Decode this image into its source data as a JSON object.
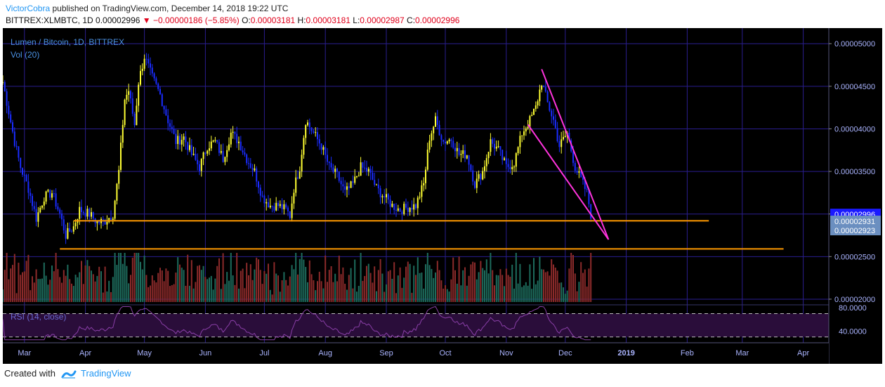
{
  "header": {
    "author": "VictorCobra",
    "published_text": "published on TradingView.com, December 14, 2018 19:22 UTC",
    "symbol": "BITTREX:XLMBTC, 1D",
    "last": "0.00002996",
    "change": "▼ −0.00000186 (−5.85%)",
    "open_label": "O:",
    "open": "0.00003181",
    "high_label": "H:",
    "high": "0.00003181",
    "low_label": "L:",
    "low": "0.00002987",
    "close_label": "C:",
    "close": "0.00002996"
  },
  "legend": {
    "title": "Lumen / Bitcoin, 1D, BITTREX",
    "volume": "Vol (20)",
    "rsi": "RSI (14, close)"
  },
  "footer": {
    "created_with": "Created with",
    "brand": "TradingView"
  },
  "colors": {
    "background": "#000000",
    "grid": "#2a1e8f",
    "candle_up": "#ffff33",
    "candle_down": "#1a2cff",
    "vol_up": "#1d6b5c",
    "vol_down": "#8b2a2a",
    "support_line": "#ff9900",
    "wedge": "#ff33dd",
    "rsi_line": "#8a3fa8",
    "rsi_band": "#2a0d3a",
    "axis_text": "#aab4ff",
    "price_tag": "#1a1aff",
    "price_tag_secondary": "#6b8fc0"
  },
  "chart_data": {
    "type": "candlestick",
    "symbol": "XLM/BTC",
    "interval": "1D",
    "y_axis": {
      "ticks": [
        "0.00005000",
        "0.00004500",
        "0.00004000",
        "0.00003500",
        "0.00003000",
        "0.00002500",
        "0.00002000"
      ],
      "range": [
        1.95e-05,
        5.15e-05
      ]
    },
    "x_axis": {
      "ticks": [
        "Mar",
        "Apr",
        "May",
        "Jun",
        "Jul",
        "Aug",
        "Sep",
        "Oct",
        "Nov",
        "Dec",
        "2019",
        "Feb",
        "Mar",
        "Apr"
      ],
      "range": [
        "2018-02-18",
        "2019-04-14"
      ]
    },
    "price_tags": [
      {
        "value": "0.00002996",
        "primary": true
      },
      {
        "value": "0.00002931",
        "primary": false
      },
      {
        "value": "0.00002923",
        "primary": false
      }
    ],
    "rsi": {
      "ticks": [
        "80.0000",
        "40.0000"
      ],
      "band": [
        30,
        70
      ],
      "range": [
        20,
        85
      ]
    },
    "price_path": [
      [
        "2018-02-18",
        4.55e-05
      ],
      [
        "2018-02-24",
        3.85e-05
      ],
      [
        "2018-02-27",
        3.55e-05
      ],
      [
        "2018-03-03",
        3.3e-05
      ],
      [
        "2018-03-07",
        2.95e-05
      ],
      [
        "2018-03-11",
        3.2e-05
      ],
      [
        "2018-03-15",
        3.25e-05
      ],
      [
        "2018-03-19",
        3e-05
      ],
      [
        "2018-03-22",
        2.75e-05
      ],
      [
        "2018-03-26",
        2.85e-05
      ],
      [
        "2018-03-29",
        3.05e-05
      ],
      [
        "2018-04-03",
        3e-05
      ],
      [
        "2018-04-07",
        2.9e-05
      ],
      [
        "2018-04-11",
        2.92e-05
      ],
      [
        "2018-04-15",
        3e-05
      ],
      [
        "2018-04-18",
        3.5e-05
      ],
      [
        "2018-04-21",
        4.35e-05
      ],
      [
        "2018-04-23",
        4.45e-05
      ],
      [
        "2018-04-26",
        4.05e-05
      ],
      [
        "2018-04-28",
        4.55e-05
      ],
      [
        "2018-05-01",
        4.85e-05
      ],
      [
        "2018-05-05",
        4.6e-05
      ],
      [
        "2018-05-09",
        4.4e-05
      ],
      [
        "2018-05-13",
        4.1e-05
      ],
      [
        "2018-05-17",
        3.85e-05
      ],
      [
        "2018-05-21",
        3.9e-05
      ],
      [
        "2018-05-25",
        3.7e-05
      ],
      [
        "2018-05-29",
        3.55e-05
      ],
      [
        "2018-06-02",
        3.8e-05
      ],
      [
        "2018-06-06",
        3.85e-05
      ],
      [
        "2018-06-10",
        3.65e-05
      ],
      [
        "2018-06-14",
        3.95e-05
      ],
      [
        "2018-06-18",
        3.85e-05
      ],
      [
        "2018-06-22",
        3.65e-05
      ],
      [
        "2018-06-26",
        3.5e-05
      ],
      [
        "2018-06-30",
        3.2e-05
      ],
      [
        "2018-07-04",
        3.1e-05
      ],
      [
        "2018-07-08",
        3.1e-05
      ],
      [
        "2018-07-12",
        3.05e-05
      ],
      [
        "2018-07-14",
        2.98e-05
      ],
      [
        "2018-07-16",
        3.3e-05
      ],
      [
        "2018-07-19",
        3.55e-05
      ],
      [
        "2018-07-22",
        4.1e-05
      ],
      [
        "2018-07-26",
        3.95e-05
      ],
      [
        "2018-07-30",
        3.8e-05
      ],
      [
        "2018-08-03",
        3.55e-05
      ],
      [
        "2018-08-07",
        3.45e-05
      ],
      [
        "2018-08-11",
        3.25e-05
      ],
      [
        "2018-08-15",
        3.35e-05
      ],
      [
        "2018-08-19",
        3.55e-05
      ],
      [
        "2018-08-23",
        3.5e-05
      ],
      [
        "2018-08-27",
        3.3e-05
      ],
      [
        "2018-08-31",
        3.2e-05
      ],
      [
        "2018-09-04",
        3.1e-05
      ],
      [
        "2018-09-08",
        3.05e-05
      ],
      [
        "2018-09-12",
        3.08e-05
      ],
      [
        "2018-09-16",
        3.1e-05
      ],
      [
        "2018-09-20",
        3.35e-05
      ],
      [
        "2018-09-23",
        3.9e-05
      ],
      [
        "2018-09-26",
        4.1e-05
      ],
      [
        "2018-09-30",
        3.85e-05
      ],
      [
        "2018-10-04",
        3.88e-05
      ],
      [
        "2018-10-08",
        3.7e-05
      ],
      [
        "2018-10-12",
        3.7e-05
      ],
      [
        "2018-10-16",
        3.35e-05
      ],
      [
        "2018-10-20",
        3.5e-05
      ],
      [
        "2018-10-24",
        3.85e-05
      ],
      [
        "2018-10-28",
        3.75e-05
      ],
      [
        "2018-11-01",
        3.55e-05
      ],
      [
        "2018-11-05",
        3.6e-05
      ],
      [
        "2018-11-09",
        3.95e-05
      ],
      [
        "2018-11-13",
        4.1e-05
      ],
      [
        "2018-11-16",
        4.25e-05
      ],
      [
        "2018-11-19",
        4.55e-05
      ],
      [
        "2018-11-22",
        4.3e-05
      ],
      [
        "2018-11-25",
        4.1e-05
      ],
      [
        "2018-11-28",
        3.8e-05
      ],
      [
        "2018-12-02",
        3.95e-05
      ],
      [
        "2018-12-06",
        3.55e-05
      ],
      [
        "2018-12-09",
        3.4e-05
      ],
      [
        "2018-12-12",
        3.25e-05
      ],
      [
        "2018-12-14",
        2.996e-05
      ]
    ],
    "annotations": {
      "support_lines": [
        {
          "y": 2.92e-05,
          "from": "2018-03-26",
          "to": "2019-02-12"
        },
        {
          "y": 2.59e-05,
          "from": "2018-03-19",
          "to": "2019-03-22"
        }
      ],
      "falling_wedge": [
        {
          "from": [
            "2018-11-19",
            4.7e-05
          ],
          "to": [
            "2018-12-23",
            2.7e-05
          ]
        },
        {
          "from": [
            "2018-11-12",
            4.05e-05
          ],
          "to": [
            "2018-12-23",
            2.7e-05
          ]
        }
      ]
    }
  }
}
